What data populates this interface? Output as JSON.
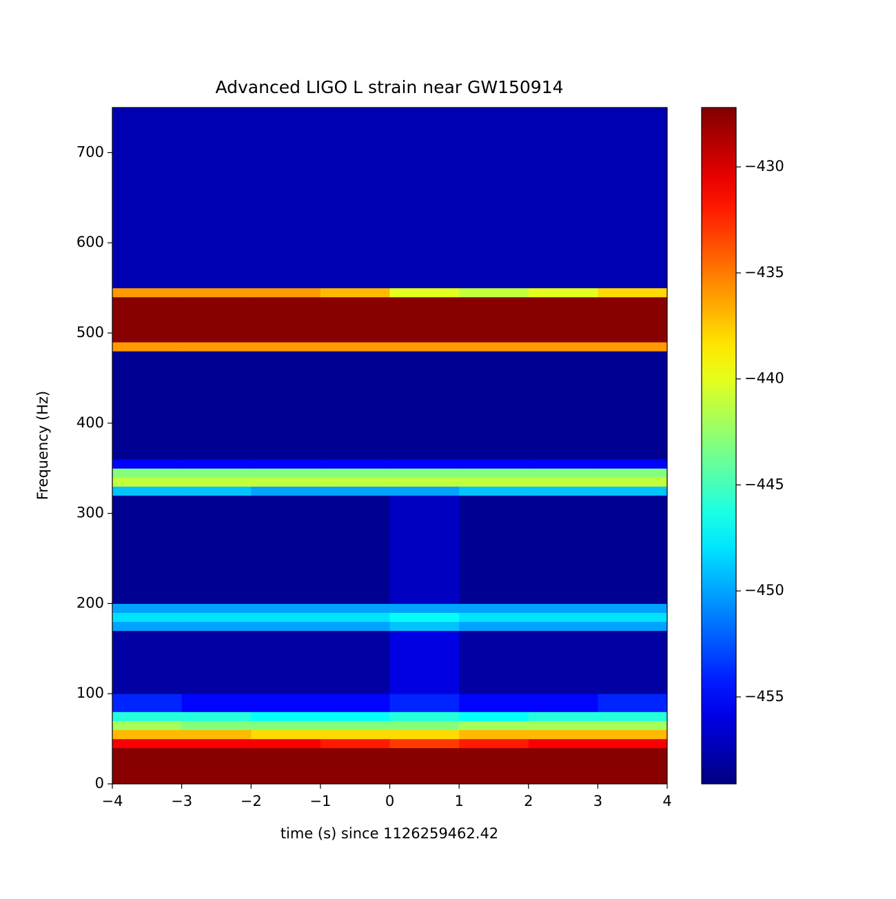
{
  "chart_data": {
    "type": "heatmap",
    "title": "Advanced LIGO L strain near GW150914",
    "x_label": "time (s) since 1126259462.42",
    "y_label": "Frequency (Hz)",
    "x_bins": [
      -4,
      -3,
      -2,
      -1,
      0,
      1,
      2,
      3,
      4
    ],
    "y_bins": [
      0,
      40,
      50,
      60,
      70,
      80,
      100,
      170,
      180,
      190,
      200,
      320,
      330,
      340,
      350,
      360,
      480,
      490,
      540,
      550,
      750
    ],
    "z": [
      [
        -427.5,
        -427.5,
        -427.5,
        -427.5,
        -427.5,
        -427.5,
        -427.5,
        -427.5
      ],
      [
        -431,
        -431,
        -431,
        -432,
        -433,
        -432,
        -431,
        -431
      ],
      [
        -437,
        -437,
        -438,
        -438,
        -438,
        -437,
        -437,
        -437
      ],
      [
        -442,
        -443,
        -443,
        -443,
        -443,
        -442,
        -442,
        -442
      ],
      [
        -446,
        -446,
        -447,
        -447,
        -446,
        -447,
        -446,
        -446
      ],
      [
        -454,
        -455,
        -455,
        -455,
        -454,
        -455,
        -455,
        -454
      ],
      [
        -458,
        -458,
        -458,
        -458,
        -456,
        -458,
        -458,
        -458
      ],
      [
        -450,
        -450,
        -450,
        -450,
        -449,
        -450,
        -450,
        -450
      ],
      [
        -448,
        -448,
        -448,
        -448,
        -447,
        -448,
        -448,
        -448
      ],
      [
        -450,
        -450,
        -450,
        -450,
        -450,
        -450,
        -450,
        -450
      ],
      [
        -458.5,
        -458.5,
        -458.5,
        -458.5,
        -457,
        -458.5,
        -458.5,
        -458.5
      ],
      [
        -449,
        -449,
        -450,
        -450,
        -450,
        -449,
        -449,
        -449
      ],
      [
        -441,
        -441,
        -441,
        -441,
        -441,
        -441,
        -441,
        -441
      ],
      [
        -443,
        -443,
        -443,
        -443,
        -443,
        -443,
        -443,
        -443
      ],
      [
        -455,
        -455,
        -455,
        -455,
        -455,
        -455,
        -455,
        -455
      ],
      [
        -458.5,
        -458.5,
        -458.5,
        -458.5,
        -458.5,
        -458.5,
        -458.5,
        -458.5
      ],
      [
        -436,
        -436,
        -436,
        -436,
        -436,
        -436,
        -436,
        -436
      ],
      [
        -427.5,
        -427.5,
        -427.5,
        -427.5,
        -427.5,
        -427.5,
        -427.5,
        -427.5
      ],
      [
        -436,
        -436,
        -436,
        -437,
        -440,
        -441,
        -440,
        -438
      ],
      [
        -457.5,
        -457.5,
        -457.5,
        -457.5,
        -457.5,
        -457.5,
        -457.5,
        -457.5
      ]
    ],
    "colormap": "jet",
    "clim": [
      -459.1,
      -427.2
    ],
    "xlim": [
      -4,
      4
    ],
    "ylim": [
      0,
      750
    ],
    "xticks": [
      {
        "value": -4,
        "label": "−4"
      },
      {
        "value": -3,
        "label": "−3"
      },
      {
        "value": -2,
        "label": "−2"
      },
      {
        "value": -1,
        "label": "−1"
      },
      0,
      1,
      2,
      3,
      4
    ],
    "yticks": [
      0,
      100,
      200,
      300,
      400,
      500,
      600,
      700
    ],
    "cticks": [
      {
        "value": -430,
        "label": "−430"
      },
      {
        "value": -435,
        "label": "−435"
      },
      {
        "value": -440,
        "label": "−440"
      },
      {
        "value": -445,
        "label": "−445"
      },
      {
        "value": -450,
        "label": "−450"
      },
      {
        "value": -455,
        "label": "−455"
      }
    ]
  }
}
